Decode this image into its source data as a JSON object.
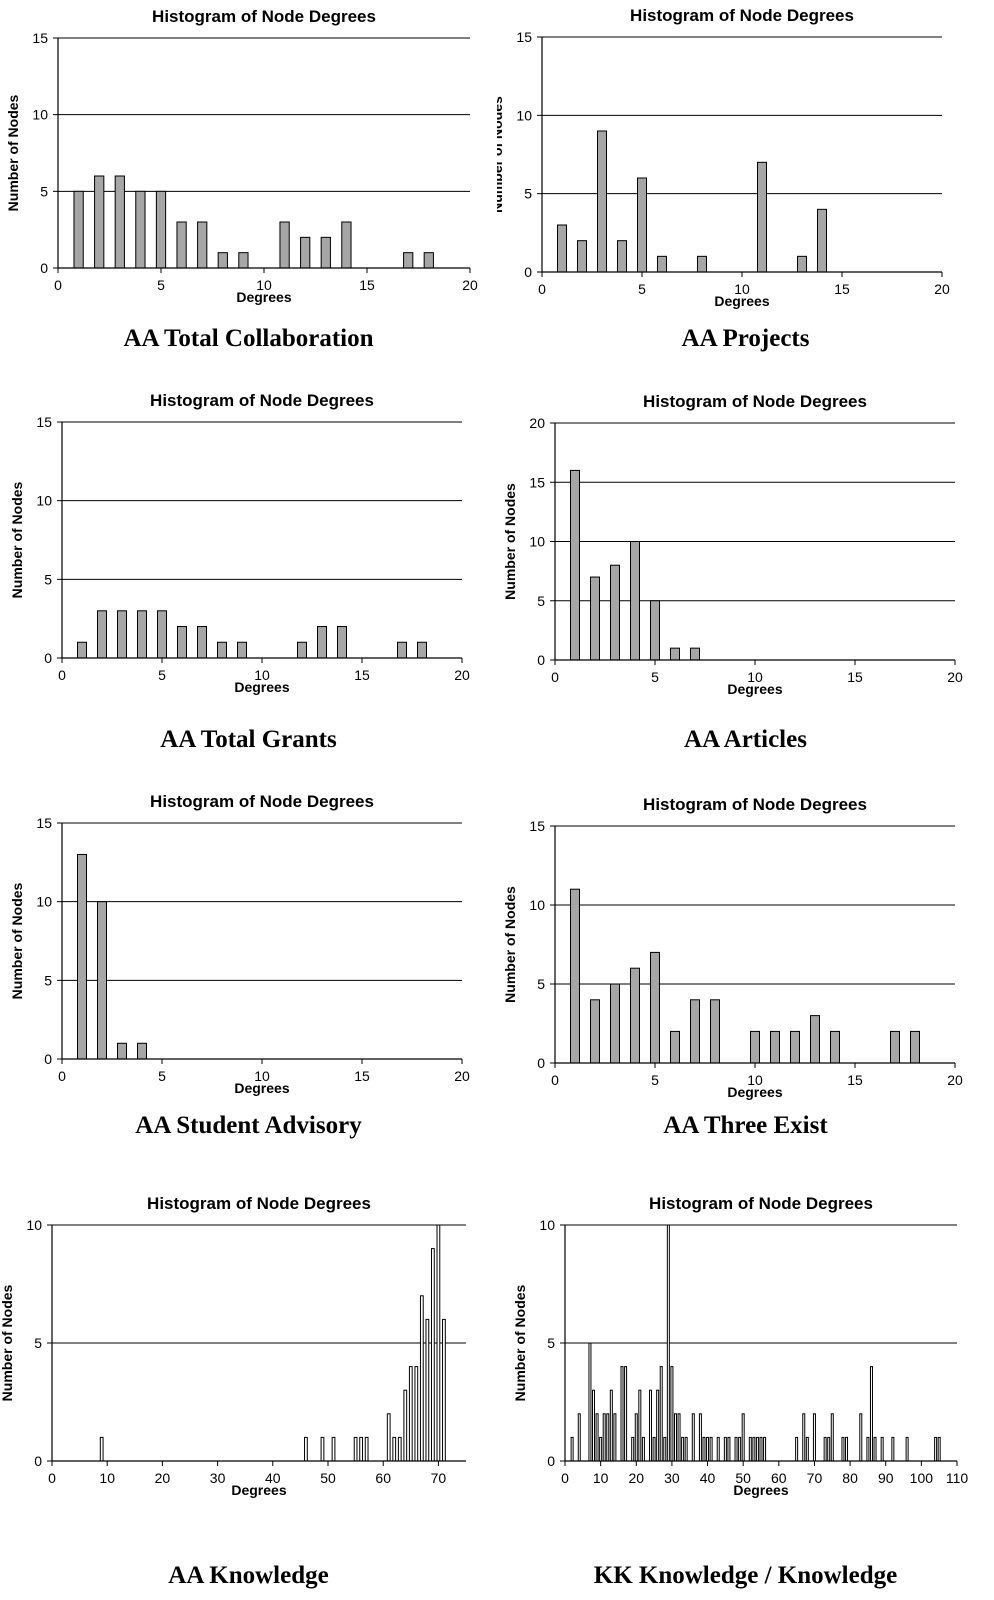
{
  "chart_data": [
    {
      "type": "bar",
      "title": "Histogram of Node Degrees",
      "caption": "AA Total Collaboration",
      "xlabel": "Degrees",
      "ylabel": "Number of Nodes",
      "xlim": [
        0,
        20
      ],
      "xticks": [
        0,
        5,
        10,
        15,
        20
      ],
      "ylim": [
        0,
        15
      ],
      "yticks": [
        0,
        5,
        10,
        15
      ],
      "x": [
        1,
        2,
        3,
        4,
        5,
        6,
        7,
        8,
        9,
        11,
        12,
        13,
        14,
        17,
        18
      ],
      "values": [
        5,
        6,
        6,
        5,
        5,
        3,
        3,
        1,
        1,
        3,
        2,
        2,
        3,
        1,
        1
      ],
      "bar_width": 0.45,
      "bar_color": "#a6a6a6",
      "grid": "horizontal"
    },
    {
      "type": "bar",
      "title": "Histogram of Node Degrees",
      "caption": "AA Projects",
      "xlabel": "Degrees",
      "ylabel": "Number of Nodes",
      "xlim": [
        0,
        20
      ],
      "xticks": [
        0,
        5,
        10,
        15,
        20
      ],
      "ylim": [
        0,
        15
      ],
      "yticks": [
        0,
        5,
        10,
        15
      ],
      "x": [
        1,
        2,
        3,
        4,
        5,
        6,
        8,
        11,
        13,
        14
      ],
      "values": [
        3,
        2,
        9,
        2,
        6,
        1,
        1,
        7,
        1,
        4
      ],
      "bar_width": 0.45,
      "bar_color": "#a6a6a6",
      "grid": "horizontal"
    },
    {
      "type": "bar",
      "title": "Histogram of Node Degrees",
      "caption": "AA Total Grants",
      "xlabel": "Degrees",
      "ylabel": "Number of Nodes",
      "xlim": [
        0,
        20
      ],
      "xticks": [
        0,
        5,
        10,
        15,
        20
      ],
      "ylim": [
        0,
        15
      ],
      "yticks": [
        0,
        5,
        10,
        15
      ],
      "x": [
        1,
        2,
        3,
        4,
        5,
        6,
        7,
        8,
        9,
        12,
        13,
        14,
        17,
        18
      ],
      "values": [
        1,
        3,
        3,
        3,
        3,
        2,
        2,
        1,
        1,
        1,
        2,
        2,
        1,
        1
      ],
      "bar_width": 0.45,
      "bar_color": "#a6a6a6",
      "grid": "horizontal"
    },
    {
      "type": "bar",
      "title": "Histogram of Node Degrees",
      "caption": "AA Articles",
      "xlabel": "Degrees",
      "ylabel": "Number of Nodes",
      "xlim": [
        0,
        20
      ],
      "xticks": [
        0,
        5,
        10,
        15,
        20
      ],
      "ylim": [
        0,
        20
      ],
      "yticks": [
        0,
        5,
        10,
        15,
        20
      ],
      "x": [
        1,
        2,
        3,
        4,
        5,
        6,
        7
      ],
      "values": [
        16,
        7,
        8,
        10,
        5,
        1,
        1
      ],
      "bar_width": 0.45,
      "bar_color": "#a6a6a6",
      "grid": "horizontal"
    },
    {
      "type": "bar",
      "title": "Histogram of Node Degrees",
      "caption": "AA Student Advisory",
      "xlabel": "Degrees",
      "ylabel": "Number of Nodes",
      "xlim": [
        0,
        20
      ],
      "xticks": [
        0,
        5,
        10,
        15,
        20
      ],
      "ylim": [
        0,
        15
      ],
      "yticks": [
        0,
        5,
        10,
        15
      ],
      "x": [
        1,
        2,
        3,
        4
      ],
      "values": [
        13,
        10,
        1,
        1
      ],
      "bar_width": 0.45,
      "bar_color": "#a6a6a6",
      "grid": "horizontal"
    },
    {
      "type": "bar",
      "title": "Histogram of Node Degrees",
      "caption": "AA Three Exist",
      "xlabel": "Degrees",
      "ylabel": "Number of Nodes",
      "xlim": [
        0,
        20
      ],
      "xticks": [
        0,
        5,
        10,
        15,
        20
      ],
      "ylim": [
        0,
        15
      ],
      "yticks": [
        0,
        5,
        10,
        15
      ],
      "x": [
        1,
        2,
        3,
        4,
        5,
        6,
        7,
        8,
        10,
        11,
        12,
        13,
        14,
        17,
        18
      ],
      "values": [
        11,
        4,
        5,
        6,
        7,
        2,
        4,
        4,
        2,
        2,
        2,
        3,
        2,
        2,
        2
      ],
      "bar_width": 0.45,
      "bar_color": "#a6a6a6",
      "grid": "horizontal"
    },
    {
      "type": "bar",
      "title": "Histogram of Node Degrees",
      "caption": "AA Knowledge",
      "xlabel": "Degrees",
      "ylabel": "Number of Nodes",
      "xlim": [
        0,
        75
      ],
      "xticks": [
        0,
        10,
        20,
        30,
        40,
        50,
        60,
        70
      ],
      "ylim": [
        0,
        10
      ],
      "yticks": [
        0,
        5,
        10
      ],
      "x": [
        9,
        46,
        49,
        51,
        55,
        56,
        57,
        61,
        62,
        63,
        64,
        65,
        66,
        67,
        68,
        69,
        70,
        71
      ],
      "values": [
        1,
        1,
        1,
        1,
        1,
        1,
        1,
        2,
        1,
        1,
        3,
        4,
        4,
        7,
        6,
        9,
        10,
        6
      ],
      "bar_width": 0.5,
      "bar_color": "#ffffff",
      "grid": "horizontal"
    },
    {
      "type": "bar",
      "title": "Histogram of Node Degrees",
      "caption": "KK Knowledge / Knowledge",
      "xlabel": "Degrees",
      "ylabel": "Number of Nodes",
      "xlim": [
        0,
        110
      ],
      "xticks": [
        0,
        10,
        20,
        30,
        40,
        50,
        60,
        70,
        80,
        90,
        100,
        110
      ],
      "ylim": [
        0,
        10
      ],
      "yticks": [
        0,
        5,
        10
      ],
      "x": [
        2,
        4,
        7,
        8,
        9,
        10,
        11,
        12,
        13,
        14,
        16,
        17,
        19,
        20,
        21,
        22,
        24,
        25,
        26,
        27,
        28,
        29,
        30,
        31,
        32,
        33,
        34,
        36,
        38,
        39,
        40,
        41,
        43,
        45,
        46,
        48,
        49,
        50,
        52,
        53,
        54,
        55,
        56,
        65,
        67,
        68,
        70,
        73,
        74,
        75,
        78,
        79,
        83,
        85,
        86,
        87,
        89,
        92,
        96,
        104,
        105
      ],
      "values": [
        1,
        2,
        5,
        3,
        2,
        1,
        2,
        2,
        3,
        2,
        4,
        4,
        1,
        2,
        3,
        1,
        3,
        1,
        3,
        4,
        1,
        10,
        4,
        2,
        2,
        1,
        1,
        2,
        2,
        1,
        1,
        1,
        1,
        1,
        1,
        1,
        1,
        2,
        1,
        1,
        1,
        1,
        1,
        1,
        2,
        1,
        2,
        1,
        1,
        2,
        1,
        1,
        2,
        1,
        4,
        1,
        1,
        1,
        1,
        1,
        1
      ],
      "bar_width": 0.45,
      "bar_color": "#ffffff",
      "grid": "horizontal"
    }
  ]
}
